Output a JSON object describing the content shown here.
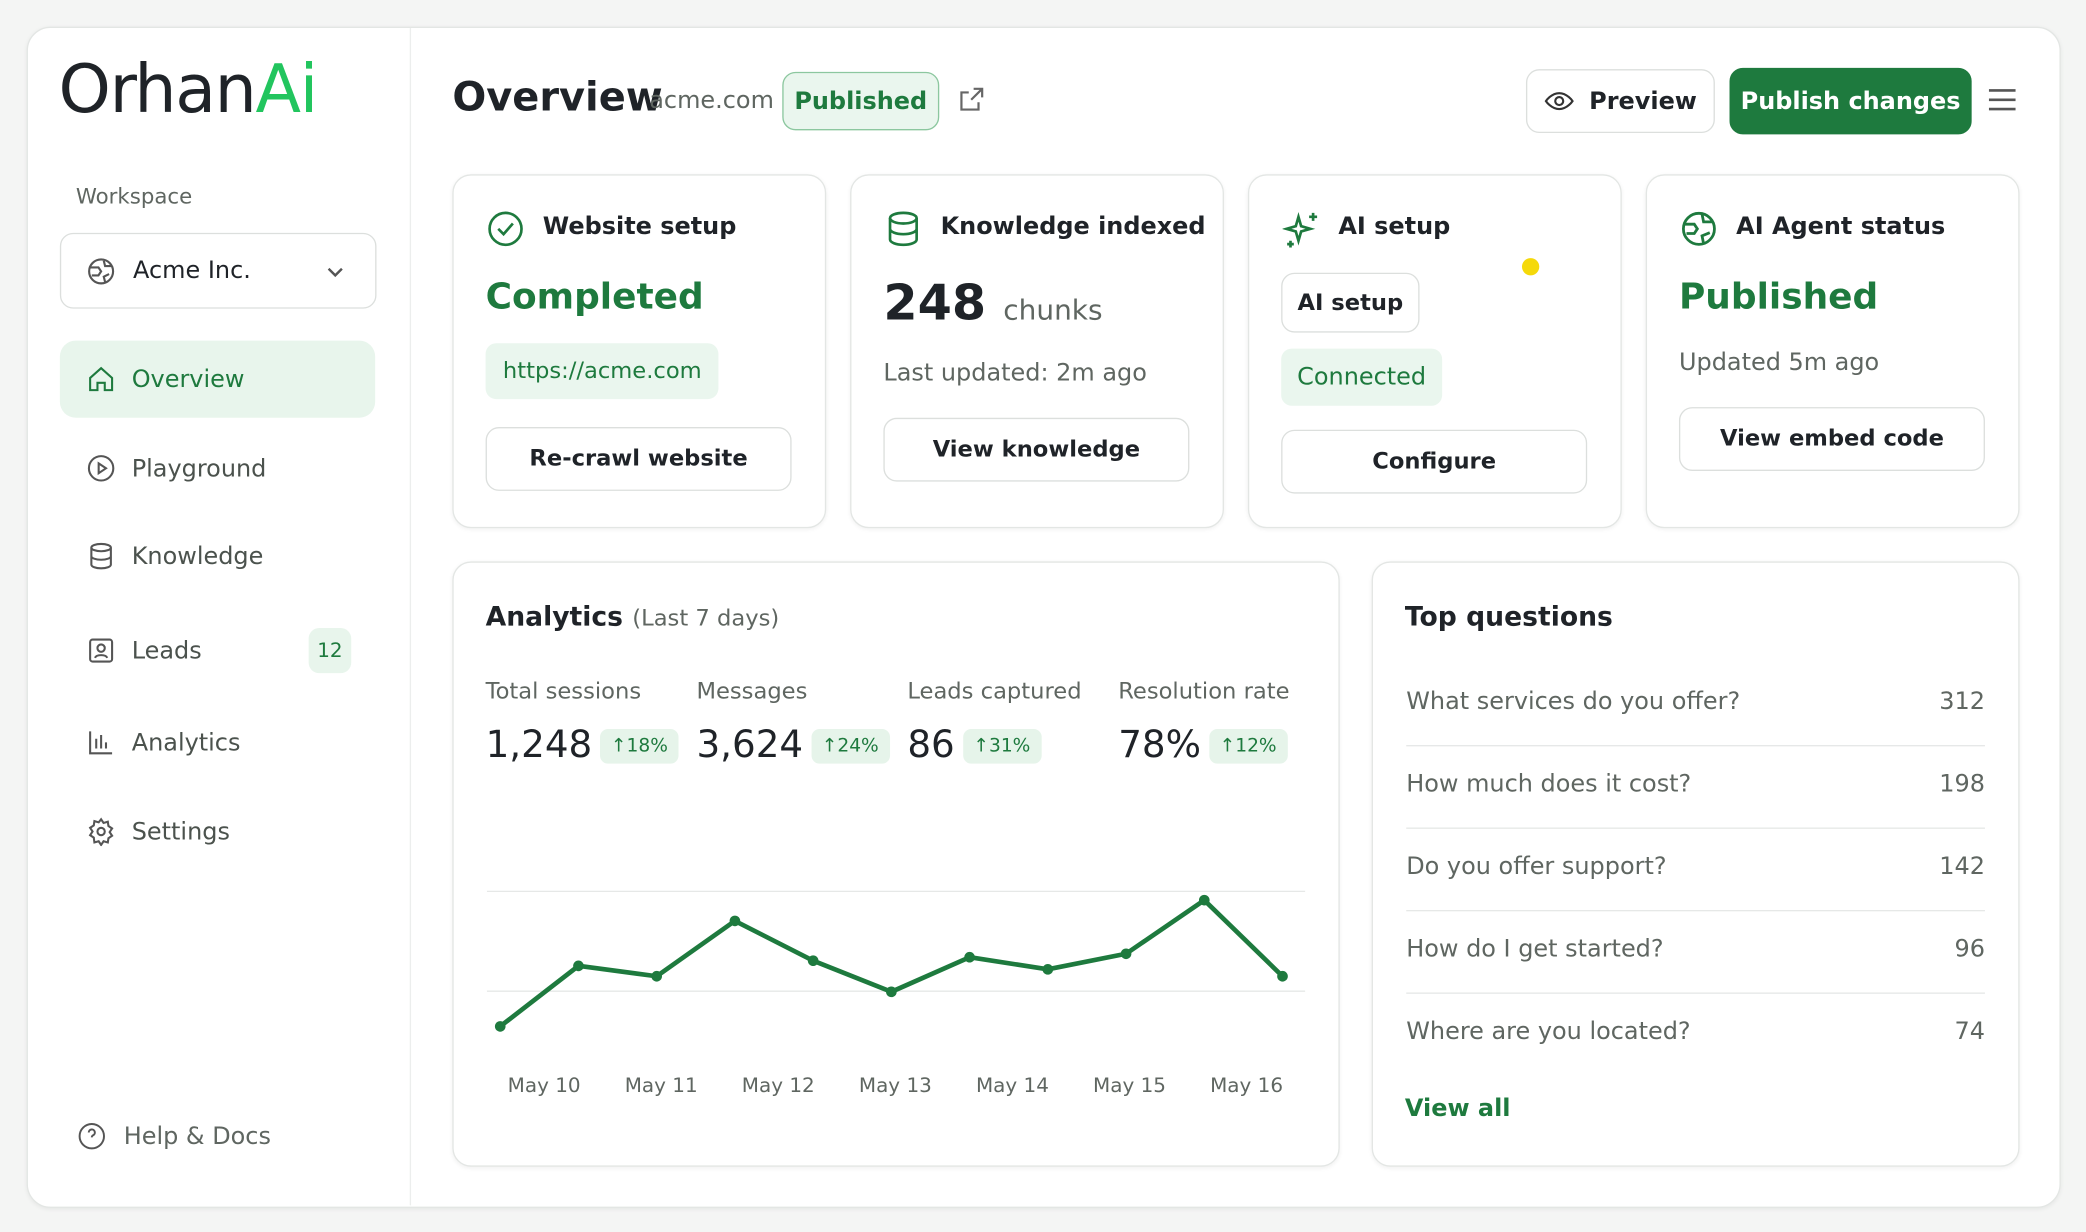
{
  "brand": {
    "name": "Orhan",
    "accent": "Ai"
  },
  "sidebar": {
    "workspace_label": "Workspace",
    "workspace": "Acme Inc.",
    "nav": [
      {
        "label": "Overview"
      },
      {
        "label": "Playground"
      },
      {
        "label": "Knowledge"
      },
      {
        "label": "Leads",
        "badge": 12
      },
      {
        "label": "Analytics"
      },
      {
        "label": "Settings"
      }
    ],
    "help": "Help & Docs"
  },
  "header": {
    "title": "Overview",
    "domain": "acme.com",
    "status": "Published",
    "preview": "Preview",
    "publish": "Publish changes"
  },
  "cards": [
    {
      "title": "Website setup",
      "status": "Completed",
      "url": "https://acme.com",
      "button": "Re-crawl website"
    },
    {
      "title": "Knowledge indexed",
      "count": 248,
      "unit": "chunks",
      "updated": "Last updated: 2m ago",
      "button": "View knowledge"
    },
    {
      "title": "AI setup",
      "chip": "AI setup",
      "status": "Connected",
      "button": "Configure"
    },
    {
      "title": "AI Agent status",
      "status": "Published",
      "updated": "Updated 5m ago",
      "button": "View embed code"
    }
  ],
  "analytics": {
    "title": "Analytics",
    "period": "(Last 7 days)",
    "metrics": [
      {
        "label": "Total sessions",
        "value": "1,248",
        "change": "18%"
      },
      {
        "label": "Messages",
        "value": "3,624",
        "change": "24%"
      },
      {
        "label": "Leads captured",
        "value": "86",
        "change": "31%"
      },
      {
        "label": "Resolution rate",
        "value": "78%",
        "change": "12%"
      }
    ],
    "chart": {
      "type": "line",
      "color": "#1e7a3e",
      "ylim": [
        0,
        100
      ],
      "values": [
        15,
        50,
        44,
        76,
        53,
        35,
        55,
        48,
        57,
        88,
        44
      ],
      "x_labels": [
        "May 10",
        "May 11",
        "May 12",
        "May 13",
        "May 14",
        "May 15",
        "May 16"
      ]
    }
  },
  "top_questions": {
    "title": "Top questions",
    "items": [
      {
        "question": "What services do you offer?",
        "count": 312
      },
      {
        "question": "How much does it cost?",
        "count": 198
      },
      {
        "question": "Do you offer support?",
        "count": 142
      },
      {
        "question": "How do I get started?",
        "count": 96
      },
      {
        "question": "Where are you located?",
        "count": 74
      }
    ],
    "view_all": "View all"
  }
}
